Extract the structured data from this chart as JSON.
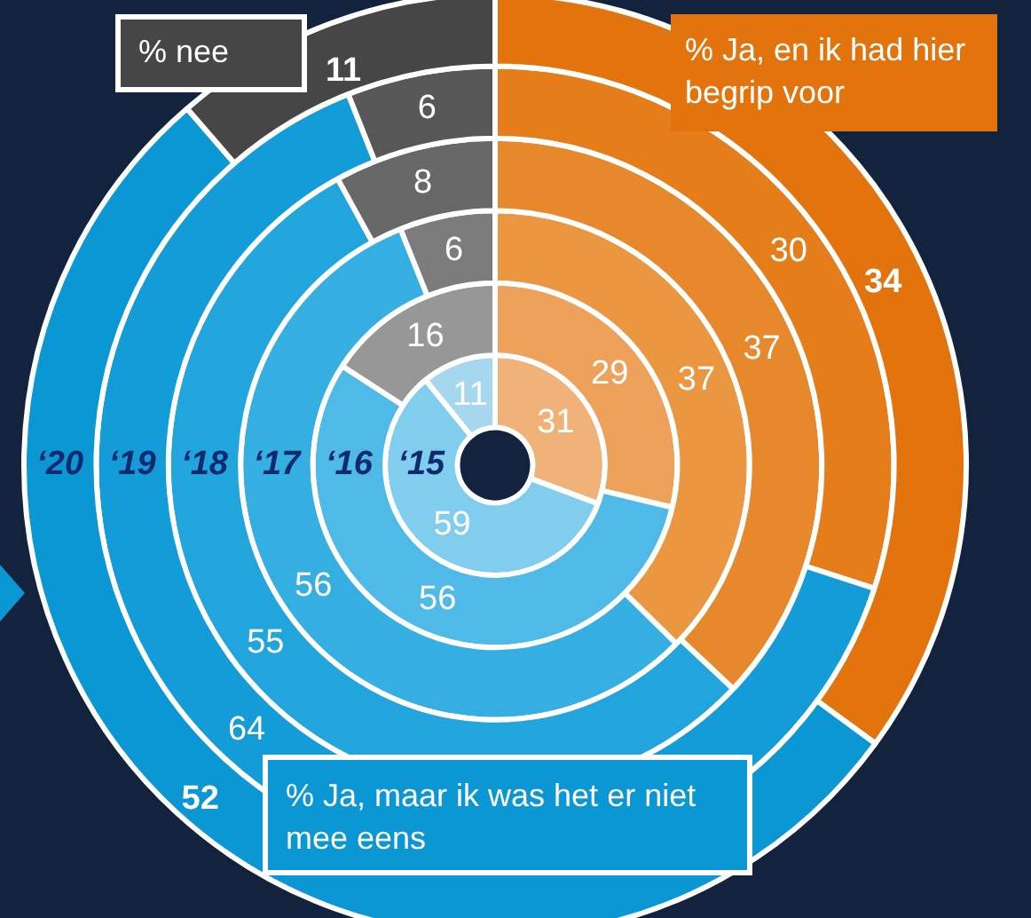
{
  "chart_data": {
    "type": "donut",
    "categories": [
      "% Ja, en ik had hier begrip voor",
      "% Ja, maar ik was het er niet mee eens",
      "% nee"
    ],
    "series": [
      {
        "name": "‘20",
        "values": [
          34,
          52,
          11
        ],
        "colors": [
          "#e3730c",
          "#0b96d4",
          "#464646"
        ]
      },
      {
        "name": "‘19",
        "values": [
          30,
          64,
          6
        ],
        "colors": [
          "#e57d1a",
          "#149cd8",
          "#575757"
        ]
      },
      {
        "name": "‘18",
        "values": [
          37,
          55,
          8
        ],
        "colors": [
          "#e8882c",
          "#22a4dc",
          "#686868"
        ]
      },
      {
        "name": "‘17",
        "values": [
          37,
          56,
          6
        ],
        "colors": [
          "#eb9640",
          "#35aee1",
          "#7c7c7c"
        ]
      },
      {
        "name": "‘16",
        "values": [
          29,
          56,
          16
        ],
        "colors": [
          "#eea15a",
          "#4fb9e7",
          "#979797"
        ]
      },
      {
        "name": "‘15",
        "values": [
          31,
          59,
          11
        ],
        "colors": [
          "#f1b27a",
          "#80cdee",
          "#a5d7ee"
        ]
      }
    ],
    "data_labels": true
  }
}
